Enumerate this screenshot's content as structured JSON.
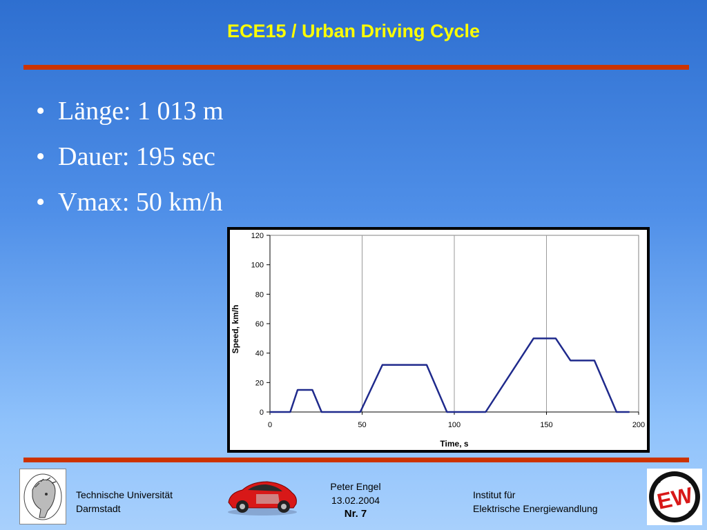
{
  "title": "ECE15 / Urban Driving Cycle",
  "bullets": [
    "Länge: 1 013 m",
    "Dauer: 195 sec",
    "Vmax: 50 km/h"
  ],
  "chart_data": {
    "type": "line",
    "xlabel": "Time, s",
    "ylabel": "Speed, km/h",
    "xlim": [
      0,
      200
    ],
    "ylim": [
      0,
      120
    ],
    "xticks": [
      0,
      50,
      100,
      150,
      200
    ],
    "yticks": [
      0,
      20,
      40,
      60,
      80,
      100,
      120
    ],
    "grid": "vertical",
    "series": [
      {
        "color": "#1f2a8c",
        "x": [
          0,
          11,
          15,
          23,
          28,
          49,
          61,
          85,
          96,
          117,
          143,
          155,
          163,
          176,
          188,
          195
        ],
        "y": [
          0,
          0,
          15,
          15,
          0,
          0,
          32,
          32,
          0,
          0,
          50,
          50,
          35,
          35,
          0,
          0
        ]
      }
    ]
  },
  "footer": {
    "left_line1": "Technische Universität",
    "left_line2": "Darmstadt",
    "center_line1": "Peter Engel",
    "center_line2": "13.02.2004",
    "center_line3": "Nr. 7",
    "right_line1": "Institut für",
    "right_line2": "Elektrische Energiewandlung",
    "ew_logo_text": "EW"
  },
  "colors": {
    "title": "#ffff00",
    "rule": "#cc3300",
    "series": "#1f2a8c"
  }
}
